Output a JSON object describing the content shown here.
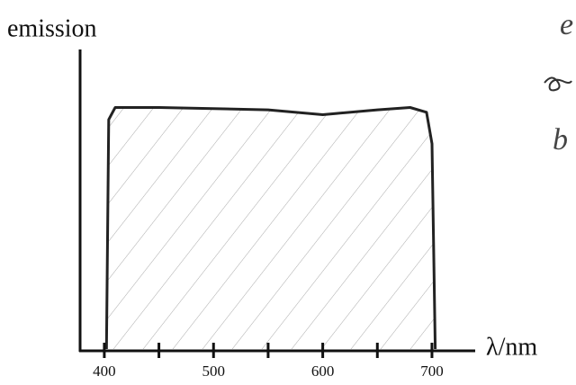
{
  "chart_data": {
    "type": "area",
    "ylabel": "emission",
    "xlabel": "λ/nm",
    "x": [
      402,
      404,
      410,
      450,
      550,
      600,
      650,
      680,
      695,
      700,
      703
    ],
    "values": [
      0,
      0.95,
      1.0,
      1.0,
      0.99,
      0.97,
      0.99,
      1.0,
      0.98,
      0.85,
      0
    ],
    "color": "#222222",
    "xlim": [
      377,
      733
    ],
    "ylim": [
      0,
      1.24
    ],
    "xticks": [
      400,
      500,
      600,
      700
    ],
    "xminorticks": [
      450,
      550,
      650
    ],
    "annotations": [
      "e",
      "b"
    ]
  }
}
